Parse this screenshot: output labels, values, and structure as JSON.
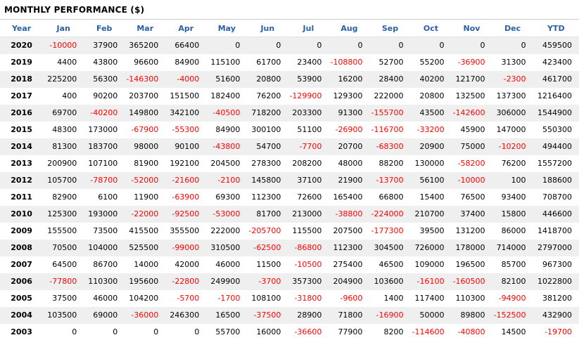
{
  "title": "MONTHLY PERFORMANCE ($)",
  "colors": {
    "header_text": "#2b5fa5",
    "negative": "#ff0000",
    "positive": "#000000",
    "row_alt_bg": "#efefef",
    "border": "#cccccc",
    "title_color": "#000000"
  },
  "chart_data": {
    "type": "table",
    "title": "MONTHLY PERFORMANCE ($)",
    "columns": [
      "Year",
      "Jan",
      "Feb",
      "Mar",
      "Apr",
      "May",
      "Jun",
      "Jul",
      "Aug",
      "Sep",
      "Oct",
      "Nov",
      "Dec",
      "YTD"
    ],
    "rows": [
      {
        "year": "2020",
        "values": [
          -10000,
          37900,
          365200,
          66400,
          0,
          0,
          0,
          0,
          0,
          0,
          0,
          0
        ],
        "ytd": 459500
      },
      {
        "year": "2019",
        "values": [
          4400,
          43800,
          96600,
          84900,
          115100,
          61700,
          23400,
          -108800,
          52700,
          55200,
          -36900,
          31300
        ],
        "ytd": 423400
      },
      {
        "year": "2018",
        "values": [
          225200,
          56300,
          -146300,
          -4000,
          51600,
          20800,
          53900,
          16200,
          28400,
          40200,
          121700,
          -2300
        ],
        "ytd": 461700
      },
      {
        "year": "2017",
        "values": [
          400,
          90200,
          203700,
          151500,
          182400,
          76200,
          -129900,
          129300,
          222000,
          20800,
          132500,
          137300
        ],
        "ytd": 1216400
      },
      {
        "year": "2016",
        "values": [
          69700,
          -40200,
          149800,
          342100,
          -40500,
          718200,
          203300,
          91300,
          -155700,
          43500,
          -142600,
          306000
        ],
        "ytd": 1544900
      },
      {
        "year": "2015",
        "values": [
          48300,
          173000,
          -67900,
          -55300,
          84900,
          300100,
          51100,
          -26900,
          -116700,
          -33200,
          45900,
          147000
        ],
        "ytd": 550300
      },
      {
        "year": "2014",
        "values": [
          81300,
          183700,
          98000,
          90100,
          -43800,
          54700,
          -7700,
          20700,
          -68300,
          20900,
          75000,
          -10200
        ],
        "ytd": 494400
      },
      {
        "year": "2013",
        "values": [
          200900,
          107100,
          81900,
          192100,
          204500,
          278300,
          208200,
          48000,
          88200,
          130000,
          -58200,
          76200
        ],
        "ytd": 1557200
      },
      {
        "year": "2012",
        "values": [
          105700,
          -78700,
          -52000,
          -21600,
          -2100,
          145800,
          37100,
          21900,
          -13700,
          56100,
          -10000,
          100
        ],
        "ytd": 188600
      },
      {
        "year": "2011",
        "values": [
          82900,
          6100,
          11900,
          -63900,
          69300,
          112300,
          72600,
          165400,
          66800,
          15400,
          76500,
          93400
        ],
        "ytd": 708700
      },
      {
        "year": "2010",
        "values": [
          125300,
          193000,
          -22000,
          -92500,
          -53000,
          81700,
          213000,
          -38800,
          -224000,
          210700,
          37400,
          15800
        ],
        "ytd": 446600
      },
      {
        "year": "2009",
        "values": [
          155500,
          73500,
          415500,
          355500,
          222000,
          -205700,
          115500,
          207500,
          -177300,
          39500,
          131200,
          86000
        ],
        "ytd": 1418700
      },
      {
        "year": "2008",
        "values": [
          70500,
          104000,
          525500,
          -99000,
          310500,
          -62500,
          -86800,
          112300,
          304500,
          726000,
          178000,
          714000
        ],
        "ytd": 2797000
      },
      {
        "year": "2007",
        "values": [
          64500,
          86700,
          14000,
          42000,
          46000,
          11500,
          -10500,
          275400,
          46500,
          109000,
          196500,
          85700
        ],
        "ytd": 967300
      },
      {
        "year": "2006",
        "values": [
          -77800,
          110300,
          195600,
          -22800,
          249900,
          -3700,
          357300,
          204900,
          103600,
          -16100,
          -160500,
          82100
        ],
        "ytd": 1022800
      },
      {
        "year": "2005",
        "values": [
          37500,
          46000,
          104200,
          -5700,
          -1700,
          108100,
          -31800,
          -9600,
          1400,
          117400,
          110300,
          -94900
        ],
        "ytd": 381200
      },
      {
        "year": "2004",
        "values": [
          103500,
          69000,
          -36000,
          246300,
          16500,
          -37500,
          28900,
          71800,
          -16900,
          50000,
          89800,
          -152500
        ],
        "ytd": 432900
      },
      {
        "year": "2003",
        "values": [
          0,
          0,
          0,
          0,
          55700,
          16000,
          -36600,
          77900,
          8200,
          -114600,
          -40800,
          14500
        ],
        "ytd": -19700
      }
    ]
  }
}
